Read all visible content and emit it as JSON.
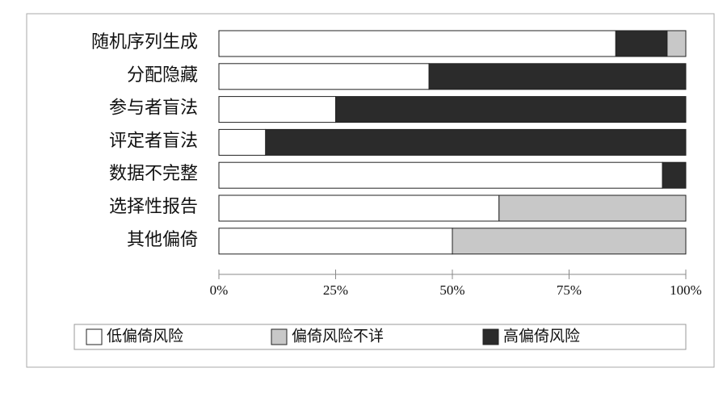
{
  "chart_data": {
    "type": "stacked-bar-horizontal",
    "categories": [
      "随机序列生成",
      "分配隐藏",
      "参与者盲法",
      "评定者盲法",
      "数据不完整",
      "选择性报告",
      "其他偏倚"
    ],
    "series": [
      {
        "name": "低偏倚风险",
        "color": "#ffffff",
        "values": [
          85,
          45,
          25,
          10,
          95,
          60,
          50
        ]
      },
      {
        "name": "高偏倚风险",
        "color": "#2b2b2b",
        "values": [
          11,
          55,
          75,
          90,
          5,
          0,
          0
        ]
      },
      {
        "name": "偏倚风险不详",
        "color": "#c8c8c8",
        "values": [
          4,
          0,
          0,
          0,
          0,
          40,
          50
        ]
      }
    ],
    "legend_order": [
      0,
      2,
      1
    ],
    "xlim": [
      0,
      100
    ],
    "xticks": [
      {
        "value": 0,
        "label": "0%"
      },
      {
        "value": 25,
        "label": "25%"
      },
      {
        "value": 50,
        "label": "50%"
      },
      {
        "value": 75,
        "label": "75%"
      },
      {
        "value": 100,
        "label": "100%"
      }
    ],
    "legend": "bottom"
  }
}
